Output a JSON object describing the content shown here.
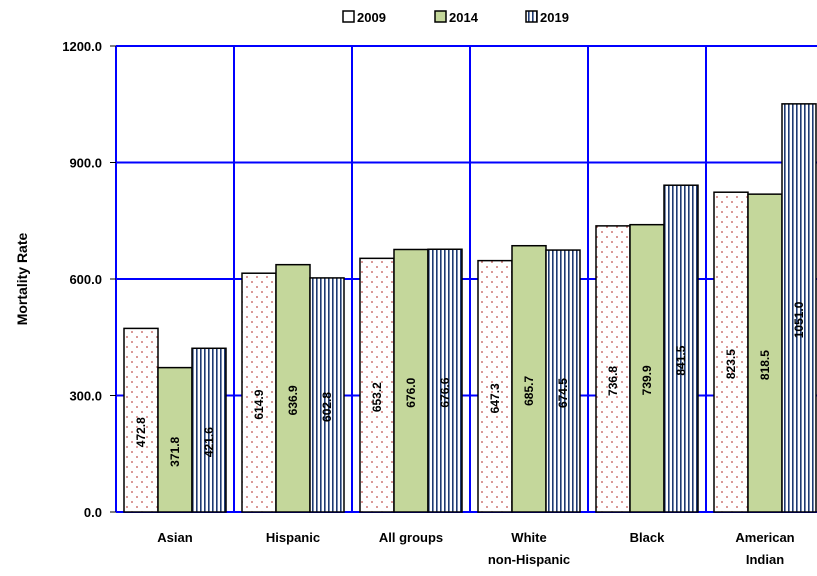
{
  "chart_data": {
    "type": "bar",
    "ylabel": "Mortality Rate",
    "xlabel": "",
    "title": "",
    "ylim": [
      0,
      1200
    ],
    "yticks": [
      "0.0",
      "300.0",
      "600.0",
      "900.0",
      "1200.0"
    ],
    "ytick_values": [
      0,
      300,
      600,
      900,
      1200
    ],
    "grid": true,
    "legend_position": "top-center",
    "categories": [
      [
        "Asian"
      ],
      [
        "Hispanic"
      ],
      [
        "All  groups"
      ],
      [
        "White",
        "non-Hispanic"
      ],
      [
        "Black"
      ],
      [
        "American",
        "Indian"
      ]
    ],
    "series": [
      {
        "name": "2009",
        "values": [
          472.8,
          614.9,
          653.2,
          647.3,
          736.8,
          823.5
        ],
        "labels": [
          "472.8",
          "614.9",
          "653.2",
          "647.3",
          "736.8",
          "823.5"
        ]
      },
      {
        "name": "2014",
        "values": [
          371.8,
          636.9,
          676.0,
          685.7,
          739.9,
          818.5
        ],
        "labels": [
          "371.8",
          "636.9",
          "676.0",
          "685.7",
          "739.9",
          "818.5"
        ]
      },
      {
        "name": "2019",
        "values": [
          421.6,
          602.8,
          676.6,
          674.5,
          841.5,
          1051.0
        ],
        "labels": [
          "421.6",
          "602.8",
          "676.6",
          "674.5",
          "841.5",
          "1051.0"
        ]
      }
    ],
    "colors": {
      "grid": "#0000ff",
      "bar_2009_fill": "#ffffff",
      "bar_2009_dots": "#c0504d",
      "bar_2014_fill": "#c4d79b",
      "bar_2019_fill": "#ffffff",
      "bar_2019_stripes": "#1f3b73",
      "bar_outline": "#000000"
    }
  }
}
